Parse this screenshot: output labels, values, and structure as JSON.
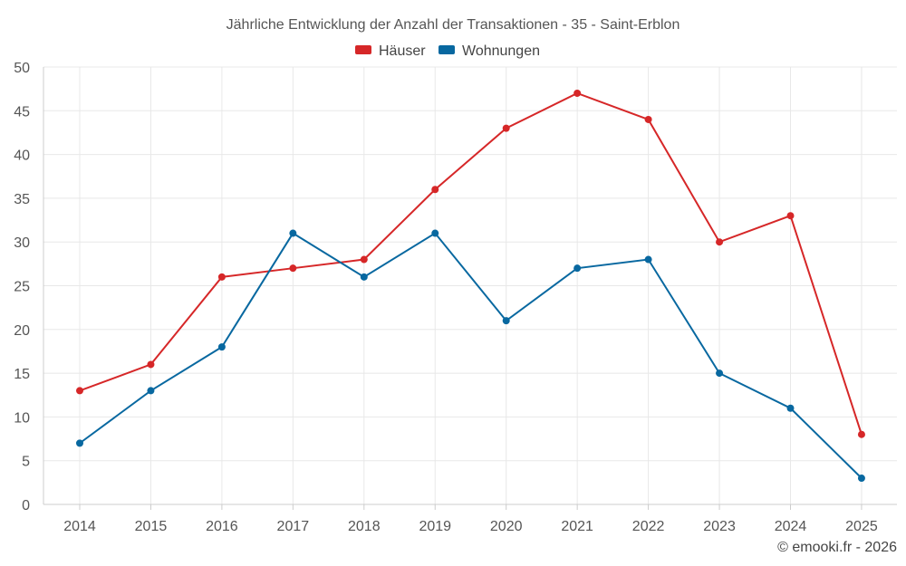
{
  "chart_data": {
    "type": "line",
    "title": "Jährliche Entwicklung der Anzahl der Transaktionen - 35 - Saint-Erblon",
    "categories": [
      "2014",
      "2015",
      "2016",
      "2017",
      "2018",
      "2019",
      "2020",
      "2021",
      "2022",
      "2023",
      "2024",
      "2025"
    ],
    "series": [
      {
        "name": "Häuser",
        "color": "#d62728",
        "values": [
          13,
          16,
          26,
          27,
          28,
          36,
          43,
          47,
          44,
          30,
          33,
          8
        ]
      },
      {
        "name": "Wohnungen",
        "color": "#0868a0",
        "values": [
          7,
          13,
          18,
          31,
          26,
          31,
          21,
          27,
          28,
          15,
          11,
          3
        ]
      }
    ],
    "ylim": [
      0,
      50
    ],
    "yticks": [
      0,
      5,
      10,
      15,
      20,
      25,
      30,
      35,
      40,
      45,
      50
    ],
    "xlabel": "",
    "ylabel": "",
    "grid": true,
    "legend_position": "top-center"
  },
  "credit": "© emooki.fr - 2026"
}
